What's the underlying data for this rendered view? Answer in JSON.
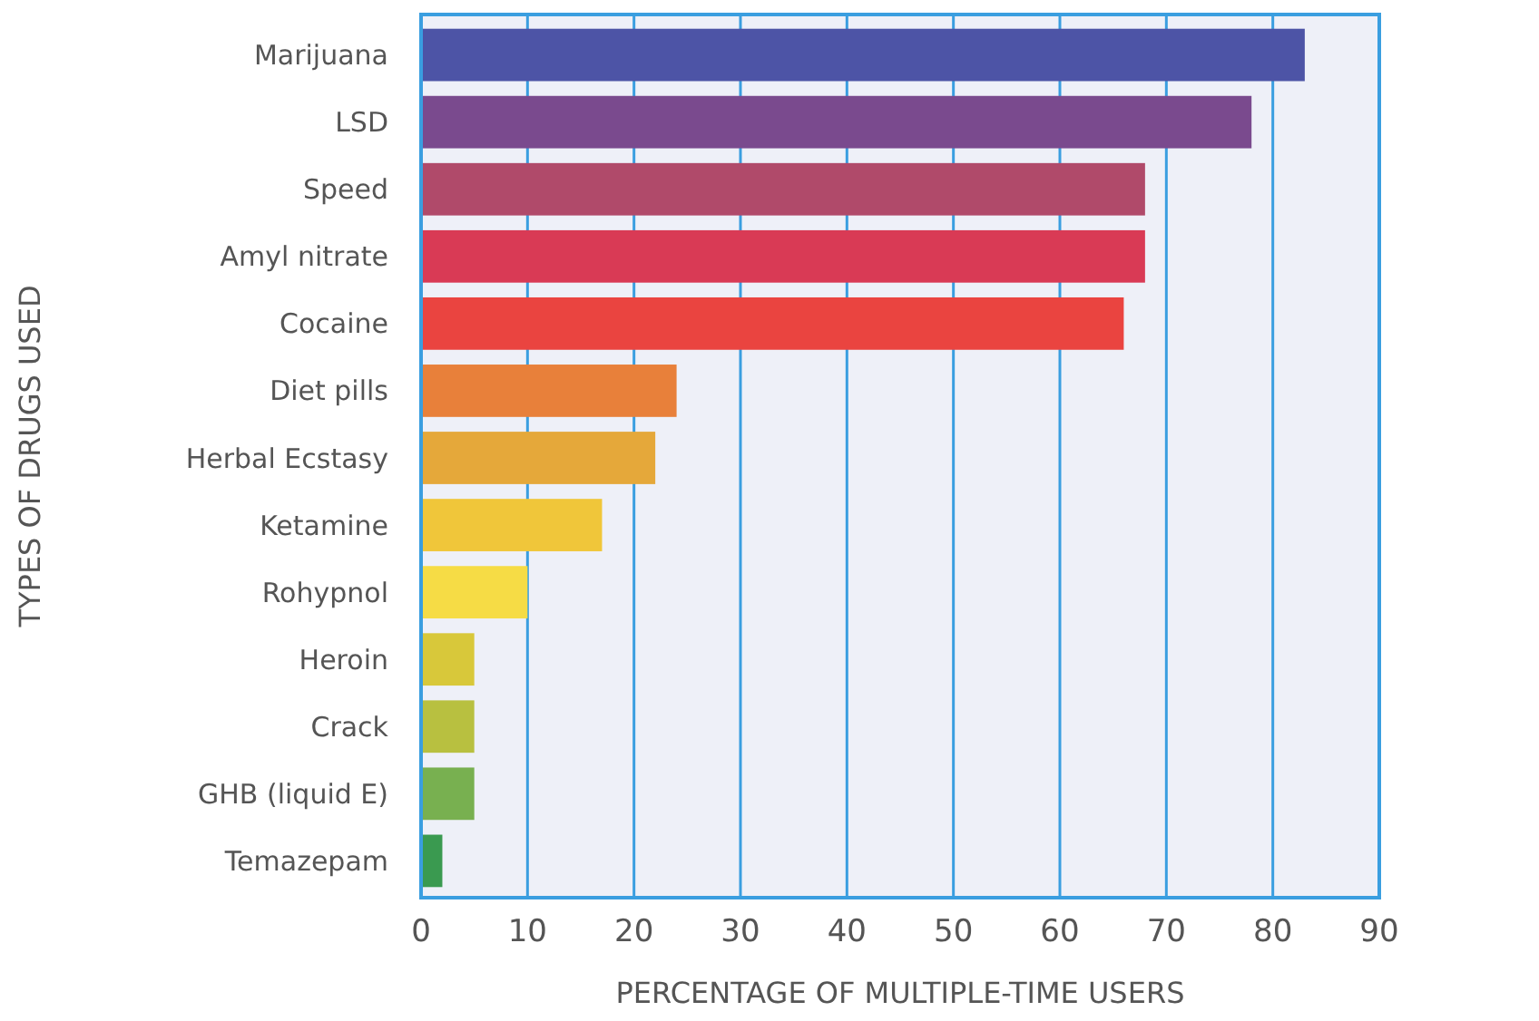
{
  "chart_data": {
    "type": "bar",
    "orientation": "horizontal",
    "xlabel": "PERCENTAGE OF MULTIPLE-TIME USERS",
    "ylabel": "TYPES OF DRUGS USED",
    "categories": [
      "Marijuana",
      "LSD",
      "Speed",
      "Amyl nitrate",
      "Cocaine",
      "Diet pills",
      "Herbal Ecstasy",
      "Ketamine",
      "Rohypnol",
      "Heroin",
      "Crack",
      "GHB (liquid E)",
      "Temazepam"
    ],
    "values": [
      83,
      78,
      68,
      68,
      66,
      24,
      22,
      17,
      10,
      5,
      5,
      5,
      2
    ],
    "colors": [
      "#4d54a6",
      "#7a4a8e",
      "#b04a6a",
      "#d93a55",
      "#ea4440",
      "#e8803a",
      "#e5a83a",
      "#f0c63a",
      "#f6dc45",
      "#d8c83a",
      "#b8c040",
      "#78b050",
      "#3a9a50"
    ],
    "xlim": [
      0,
      90
    ],
    "xticks": [
      0,
      10,
      20,
      30,
      40,
      50,
      60,
      70,
      80,
      90
    ],
    "grid": "x"
  }
}
